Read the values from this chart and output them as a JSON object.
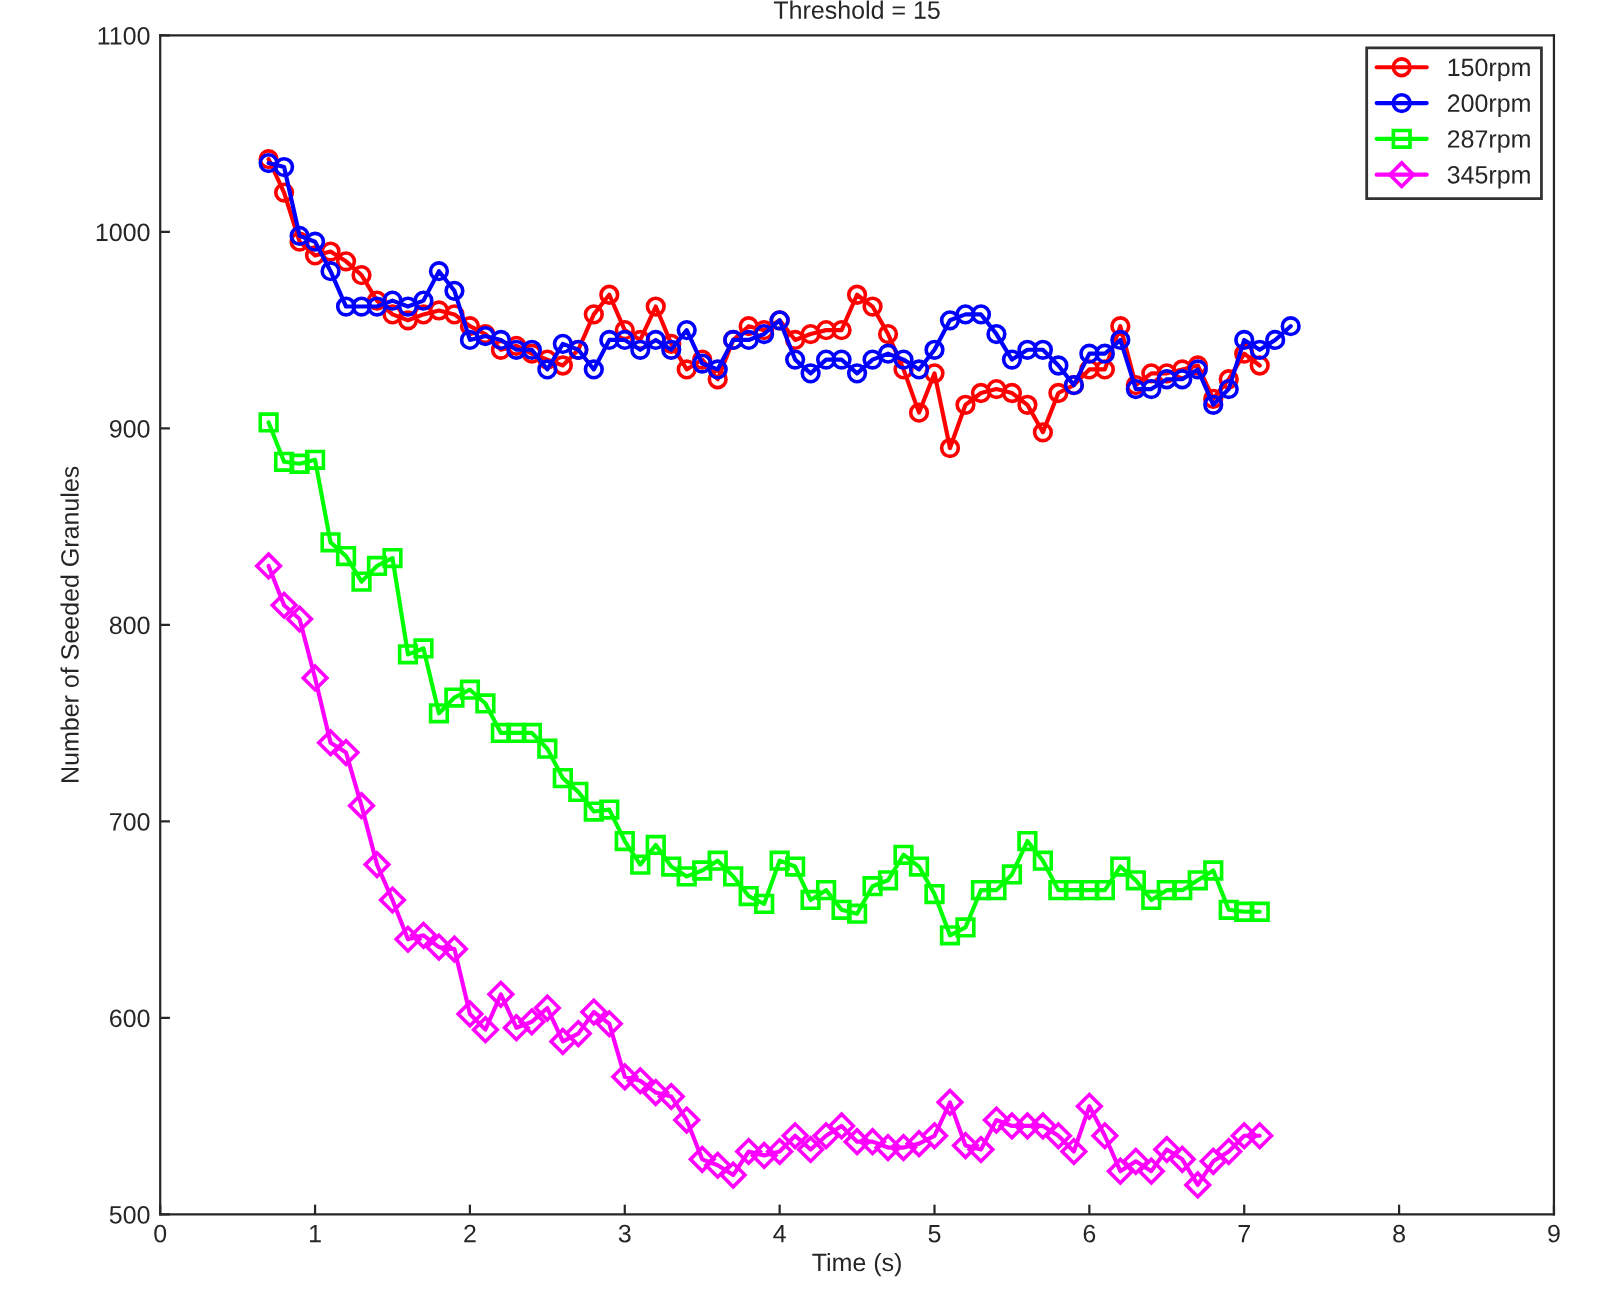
{
  "chart_data": {
    "type": "line",
    "title": "Threshold = 15",
    "xlabel": "Time (s)",
    "ylabel": "Number of Seeded Granules",
    "xlim": [
      0,
      9
    ],
    "xticks": [
      0,
      1,
      2,
      3,
      4,
      5,
      6,
      7,
      8,
      9
    ],
    "ylim": [
      500,
      1100
    ],
    "yticks": [
      500,
      600,
      700,
      800,
      900,
      1000,
      1100
    ],
    "grid": false,
    "legend": "top right",
    "line_style": "solid",
    "series": [
      {
        "name": "150rpm",
        "color": "#ff0000",
        "marker": "circle",
        "x": [
          0.7,
          0.8,
          0.9,
          1.0,
          1.1,
          1.2,
          1.3,
          1.4,
          1.5,
          1.6,
          1.7,
          1.8,
          1.9,
          2.0,
          2.1,
          2.2,
          2.3,
          2.4,
          2.5,
          2.6,
          2.7,
          2.8,
          2.9,
          3.0,
          3.1,
          3.2,
          3.3,
          3.4,
          3.5,
          3.6,
          3.7,
          3.8,
          3.9,
          4.0,
          4.1,
          4.2,
          4.3,
          4.4,
          4.5,
          4.6,
          4.7,
          4.8,
          4.9,
          5.0,
          5.1,
          5.2,
          5.3,
          5.4,
          5.5,
          5.6,
          5.7,
          5.8,
          5.9,
          6.0,
          6.1,
          6.2,
          6.3,
          6.4,
          6.5,
          6.6,
          6.7,
          6.8,
          6.9,
          7.0,
          7.1
        ],
        "values": [
          1037,
          1020,
          995,
          988,
          990,
          985,
          978,
          965,
          958,
          955,
          958,
          960,
          958,
          952,
          948,
          940,
          942,
          938,
          935,
          932,
          940,
          958,
          968,
          950,
          945,
          962,
          943,
          930,
          935,
          925,
          945,
          952,
          950,
          955,
          945,
          948,
          950,
          950,
          968,
          962,
          948,
          930,
          908,
          928,
          890,
          912,
          918,
          920,
          918,
          912,
          898,
          918,
          922,
          930,
          930,
          952,
          922,
          928,
          928,
          930,
          932,
          915,
          925,
          938,
          932
        ]
      },
      {
        "name": "200rpm",
        "color": "#0000ff",
        "marker": "circle",
        "x": [
          0.7,
          0.8,
          0.9,
          1.0,
          1.1,
          1.2,
          1.3,
          1.4,
          1.5,
          1.6,
          1.7,
          1.8,
          1.9,
          2.0,
          2.1,
          2.2,
          2.3,
          2.4,
          2.5,
          2.6,
          2.7,
          2.8,
          2.9,
          3.0,
          3.1,
          3.2,
          3.3,
          3.4,
          3.5,
          3.6,
          3.7,
          3.8,
          3.9,
          4.0,
          4.1,
          4.2,
          4.3,
          4.4,
          4.5,
          4.6,
          4.7,
          4.8,
          4.9,
          5.0,
          5.1,
          5.2,
          5.3,
          5.4,
          5.5,
          5.6,
          5.7,
          5.8,
          5.9,
          6.0,
          6.1,
          6.2,
          6.3,
          6.4,
          6.5,
          6.6,
          6.7,
          6.8,
          6.9,
          7.0,
          7.1,
          7.2,
          7.3
        ],
        "values": [
          1035,
          1033,
          998,
          995,
          980,
          962,
          962,
          962,
          965,
          962,
          965,
          980,
          970,
          945,
          947,
          945,
          940,
          940,
          930,
          943,
          940,
          930,
          945,
          945,
          940,
          945,
          940,
          950,
          933,
          930,
          945,
          945,
          948,
          955,
          935,
          928,
          935,
          935,
          928,
          935,
          938,
          935,
          930,
          940,
          955,
          958,
          958,
          948,
          935,
          940,
          940,
          932,
          922,
          938,
          938,
          945,
          920,
          920,
          925,
          925,
          930,
          912,
          920,
          945,
          940,
          945,
          952
        ]
      },
      {
        "name": "287rpm",
        "color": "#00ff00",
        "marker": "square",
        "x": [
          0.7,
          0.8,
          0.9,
          1.0,
          1.1,
          1.2,
          1.3,
          1.4,
          1.5,
          1.6,
          1.7,
          1.8,
          1.9,
          2.0,
          2.1,
          2.2,
          2.3,
          2.4,
          2.5,
          2.6,
          2.7,
          2.8,
          2.9,
          3.0,
          3.1,
          3.2,
          3.3,
          3.4,
          3.5,
          3.6,
          3.7,
          3.8,
          3.9,
          4.0,
          4.1,
          4.2,
          4.3,
          4.4,
          4.5,
          4.6,
          4.7,
          4.8,
          4.9,
          5.0,
          5.1,
          5.2,
          5.3,
          5.4,
          5.5,
          5.6,
          5.7,
          5.8,
          5.9,
          6.0,
          6.1,
          6.2,
          6.3,
          6.4,
          6.5,
          6.6,
          6.7,
          6.8,
          6.9,
          7.0,
          7.1
        ],
        "values": [
          903,
          883,
          882,
          884,
          842,
          835,
          822,
          830,
          834,
          785,
          788,
          755,
          763,
          767,
          760,
          745,
          745,
          745,
          737,
          722,
          715,
          705,
          706,
          690,
          678,
          688,
          677,
          672,
          675,
          680,
          672,
          662,
          658,
          680,
          677,
          660,
          665,
          655,
          653,
          667,
          670,
          683,
          677,
          663,
          642,
          646,
          665,
          665,
          673,
          690,
          680,
          665,
          665,
          665,
          665,
          677,
          670,
          660,
          665,
          665,
          670,
          675,
          655,
          654,
          654
        ]
      },
      {
        "name": "345rpm",
        "color": "#ff00ff",
        "marker": "diamond",
        "x": [
          0.7,
          0.8,
          0.9,
          1.0,
          1.1,
          1.2,
          1.3,
          1.4,
          1.5,
          1.6,
          1.7,
          1.8,
          1.9,
          2.0,
          2.1,
          2.2,
          2.3,
          2.4,
          2.5,
          2.6,
          2.7,
          2.8,
          2.9,
          3.0,
          3.1,
          3.2,
          3.3,
          3.4,
          3.5,
          3.6,
          3.7,
          3.8,
          3.9,
          4.0,
          4.1,
          4.2,
          4.3,
          4.4,
          4.5,
          4.6,
          4.7,
          4.8,
          4.9,
          5.0,
          5.1,
          5.2,
          5.3,
          5.4,
          5.5,
          5.6,
          5.7,
          5.8,
          5.9,
          6.0,
          6.1,
          6.2,
          6.3,
          6.4,
          6.5,
          6.6,
          6.7,
          6.8,
          6.9,
          7.0,
          7.1
        ],
        "values": [
          830,
          810,
          803,
          773,
          740,
          735,
          708,
          678,
          660,
          640,
          642,
          636,
          635,
          602,
          594,
          612,
          595,
          598,
          605,
          588,
          592,
          603,
          597,
          570,
          568,
          562,
          560,
          548,
          528,
          525,
          520,
          532,
          530,
          532,
          540,
          533,
          540,
          545,
          537,
          537,
          534,
          534,
          536,
          540,
          557,
          535,
          533,
          548,
          545,
          545,
          545,
          540,
          532,
          555,
          540,
          522,
          527,
          522,
          533,
          528,
          515,
          527,
          532,
          540,
          540
        ]
      }
    ]
  }
}
